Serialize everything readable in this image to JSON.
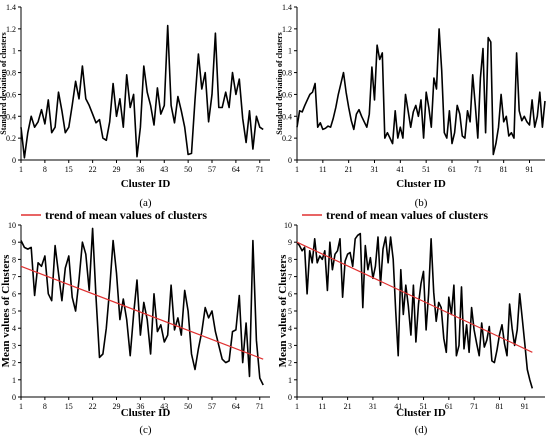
{
  "chart_data": [
    {
      "type": "line",
      "caption": "(a)",
      "xlabel": "Cluster ID",
      "ylabel": "Standard deviation of clusters",
      "ylim": [
        0,
        1.4
      ],
      "yticks": [
        "0",
        "0.2",
        "0.4",
        "0.6",
        "0.8",
        "1",
        "1.2",
        "1.4"
      ],
      "xlim": [
        1,
        74
      ],
      "xticks": [
        "1",
        "8",
        "15",
        "22",
        "29",
        "36",
        "43",
        "50",
        "57",
        "64",
        "71"
      ],
      "legend": "",
      "series": [
        {
          "values": [
            0.3,
            0.02,
            0.25,
            0.4,
            0.3,
            0.35,
            0.46,
            0.33,
            0.55,
            0.25,
            0.3,
            0.62,
            0.45,
            0.25,
            0.3,
            0.5,
            0.72,
            0.56,
            0.86,
            0.56,
            0.5,
            0.42,
            0.34,
            0.37,
            0.2,
            0.18,
            0.35,
            0.7,
            0.4,
            0.56,
            0.3,
            0.78,
            0.48,
            0.6,
            0.03,
            0.3,
            0.86,
            0.62,
            0.5,
            0.32,
            0.66,
            0.42,
            0.5,
            1.23,
            0.5,
            0.34,
            0.58,
            0.45,
            0.3,
            0.05,
            0.06,
            0.55,
            0.97,
            0.65,
            0.8,
            0.35,
            0.6,
            1.16,
            0.48,
            0.48,
            0.62,
            0.48,
            0.8,
            0.6,
            0.74,
            0.38,
            0.16,
            0.45,
            0.1,
            0.4,
            0.3,
            0.28
          ]
        }
      ]
    },
    {
      "type": "line",
      "caption": "(b)",
      "xlabel": "Cluster ID",
      "ylabel": "Standard deviation of clusters",
      "ylim": [
        0,
        1.4
      ],
      "yticks": [
        "0",
        "0.2",
        "0.4",
        "0.6",
        "0.8",
        "1",
        "1.2",
        "1.4"
      ],
      "xlim": [
        1,
        97
      ],
      "xticks": [
        "1",
        "11",
        "21",
        "31",
        "41",
        "51",
        "61",
        "71",
        "81",
        "91"
      ],
      "legend": "",
      "series": [
        {
          "values": [
            0.3,
            0.45,
            0.44,
            0.5,
            0.55,
            0.6,
            0.62,
            0.7,
            0.3,
            0.34,
            0.28,
            0.29,
            0.31,
            0.3,
            0.38,
            0.48,
            0.6,
            0.7,
            0.8,
            0.62,
            0.48,
            0.36,
            0.28,
            0.42,
            0.46,
            0.4,
            0.35,
            0.3,
            0.42,
            0.85,
            0.55,
            1.05,
            0.92,
            0.98,
            0.2,
            0.25,
            0.2,
            0.15,
            0.45,
            0.2,
            0.3,
            0.2,
            0.6,
            0.45,
            0.3,
            0.44,
            0.5,
            0.4,
            0.55,
            0.2,
            0.62,
            0.48,
            0.3,
            0.75,
            0.65,
            1.2,
            0.82,
            0.25,
            0.2,
            0.45,
            0.15,
            0.25,
            0.5,
            0.42,
            0.22,
            0.2,
            0.45,
            0.35,
            0.78,
            0.5,
            0.2,
            0.75,
            1.02,
            0.25,
            1.12,
            1.08,
            0.05,
            0.15,
            0.3,
            0.6,
            0.35,
            0.4,
            0.22,
            0.25,
            0.2,
            0.98,
            0.45,
            0.36,
            0.4,
            0.35,
            0.32,
            0.55,
            0.3,
            0.4,
            0.62,
            0.3,
            0.54
          ]
        }
      ]
    },
    {
      "type": "line",
      "caption": "(c)",
      "xlabel": "Cluster ID",
      "ylabel": "Mean values of Clusters",
      "ylim": [
        0,
        10
      ],
      "yticks": [
        "0",
        "1",
        "2",
        "3",
        "4",
        "5",
        "6",
        "7",
        "8",
        "9",
        "10"
      ],
      "xlim": [
        1,
        74
      ],
      "xticks": [
        "1",
        "8",
        "15",
        "22",
        "29",
        "36",
        "43",
        "50",
        "57",
        "64",
        "71"
      ],
      "legend": "trend of mean values of clusters",
      "trend": [
        7.6,
        2.2
      ],
      "series": [
        {
          "values": [
            9.1,
            8.7,
            8.6,
            8.7,
            5.9,
            7.8,
            7.6,
            8.2,
            6.0,
            5.6,
            8.8,
            7.2,
            5.6,
            7.5,
            8.2,
            5.8,
            5.0,
            6.8,
            9.0,
            8.3,
            6.2,
            9.8,
            5.8,
            2.3,
            2.5,
            4.0,
            6.3,
            9.1,
            7.2,
            4.5,
            5.7,
            4.5,
            2.4,
            4.8,
            6.8,
            3.6,
            5.5,
            4.5,
            2.5,
            6.0,
            3.8,
            4.2,
            3.2,
            3.6,
            6.5,
            3.9,
            4.6,
            3.6,
            6.2,
            5.0,
            2.5,
            1.6,
            2.8,
            3.8,
            5.2,
            4.6,
            5.0,
            3.8,
            3.0,
            2.2,
            2.0,
            2.1,
            3.8,
            3.9,
            5.9,
            2.0,
            4.3,
            1.2,
            9.1,
            3.3,
            1.1,
            0.7
          ]
        }
      ]
    },
    {
      "type": "line",
      "caption": "(d)",
      "xlabel": "Cluster ID",
      "ylabel": "Mean values of Clusters",
      "ylim": [
        0,
        10
      ],
      "yticks": [
        "0",
        "1",
        "2",
        "3",
        "4",
        "5",
        "6",
        "7",
        "8",
        "9",
        "10"
      ],
      "xlim": [
        1,
        99
      ],
      "xticks": [
        "1",
        "11",
        "21",
        "31",
        "41",
        "51",
        "61",
        "71",
        "81",
        "91"
      ],
      "legend": "trend of mean values of clusters",
      "trend": [
        9.0,
        2.6
      ],
      "series": [
        {
          "values": [
            9.0,
            8.8,
            8.5,
            8.7,
            6.0,
            8.5,
            7.8,
            9.2,
            7.8,
            8.2,
            8.0,
            8.5,
            6.2,
            9.0,
            7.4,
            8.3,
            8.5,
            9.2,
            5.8,
            7.9,
            8.3,
            8.4,
            7.6,
            9.2,
            9.4,
            9.5,
            5.2,
            8.8,
            7.4,
            8.1,
            6.9,
            7.6,
            9.3,
            6.5,
            8.6,
            9.3,
            7.8,
            9.3,
            8.0,
            5.0,
            2.4,
            7.4,
            4.8,
            6.5,
            5.3,
            3.6,
            6.5,
            3.2,
            5.4,
            6.6,
            7.3,
            3.9,
            6.0,
            9.2,
            6.1,
            4.4,
            5.5,
            5.2,
            3.4,
            2.6,
            5.8,
            4.8,
            6.5,
            2.4,
            3.0,
            6.4,
            2.8,
            4.2,
            2.6,
            5.2,
            3.9,
            3.1,
            2.4,
            4.3,
            2.9,
            3.3,
            4.1,
            2.1,
            2.0,
            2.7,
            3.6,
            4.2,
            3.1,
            2.4,
            5.4,
            4.0,
            3.0,
            3.9,
            6.0,
            4.6,
            3.1,
            1.6,
            1.0,
            0.5
          ]
        }
      ]
    }
  ]
}
